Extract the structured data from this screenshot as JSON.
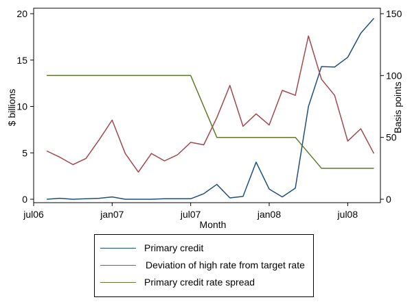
{
  "chart_data": {
    "type": "line",
    "xlabel": "Month",
    "x_ticks": [
      "jul06",
      "jan07",
      "jul07",
      "jan08",
      "jul08"
    ],
    "x_tick_values": [
      0,
      6,
      12,
      18,
      24
    ],
    "xlim": [
      0,
      26.5
    ],
    "y_left": {
      "label": "$ billions",
      "ticks": [
        0,
        5,
        10,
        15,
        20
      ],
      "lim": [
        0,
        20
      ]
    },
    "y_right": {
      "label": "Basis points",
      "ticks": [
        0,
        50,
        100,
        150
      ],
      "lim": [
        0,
        150
      ]
    },
    "grid": false,
    "legend_position": "bottom",
    "series": [
      {
        "name": "Primary credit",
        "axis": "left",
        "color": "#1f4e79",
        "x": [
          1,
          2,
          3,
          4,
          5,
          6,
          7,
          8,
          9,
          10,
          11,
          12,
          13,
          14,
          15,
          16,
          17,
          18,
          19,
          20,
          21,
          22,
          23,
          24,
          25,
          26
        ],
        "values": [
          0.0,
          0.1,
          0.0,
          0.05,
          0.1,
          0.25,
          0.0,
          0.0,
          0.0,
          0.05,
          0.05,
          0.05,
          0.6,
          1.6,
          0.15,
          0.3,
          4.0,
          1.1,
          0.25,
          1.2,
          10.0,
          14.3,
          14.25,
          15.3,
          17.9,
          19.5
        ]
      },
      {
        "name": "Deviation of high rate from target rate",
        "axis": "right",
        "color": "#a0474e",
        "x": [
          1,
          2,
          3,
          4,
          5,
          6,
          7,
          8,
          9,
          10,
          11,
          12,
          13,
          14,
          15,
          16,
          17,
          18,
          19,
          20,
          21,
          22,
          23,
          24,
          25,
          26
        ],
        "values": [
          39,
          34,
          28,
          33,
          48,
          64,
          37,
          22,
          37,
          31,
          36,
          46,
          44,
          66,
          92,
          59,
          69,
          60,
          88,
          84,
          132,
          97,
          84,
          47,
          57,
          37
        ]
      },
      {
        "name": "Primary credit rate spread",
        "axis": "right",
        "color": "#5c7a29",
        "x": [
          1,
          12,
          14,
          20,
          22,
          26
        ],
        "values": [
          100,
          100,
          50,
          50,
          25,
          25
        ]
      }
    ]
  }
}
